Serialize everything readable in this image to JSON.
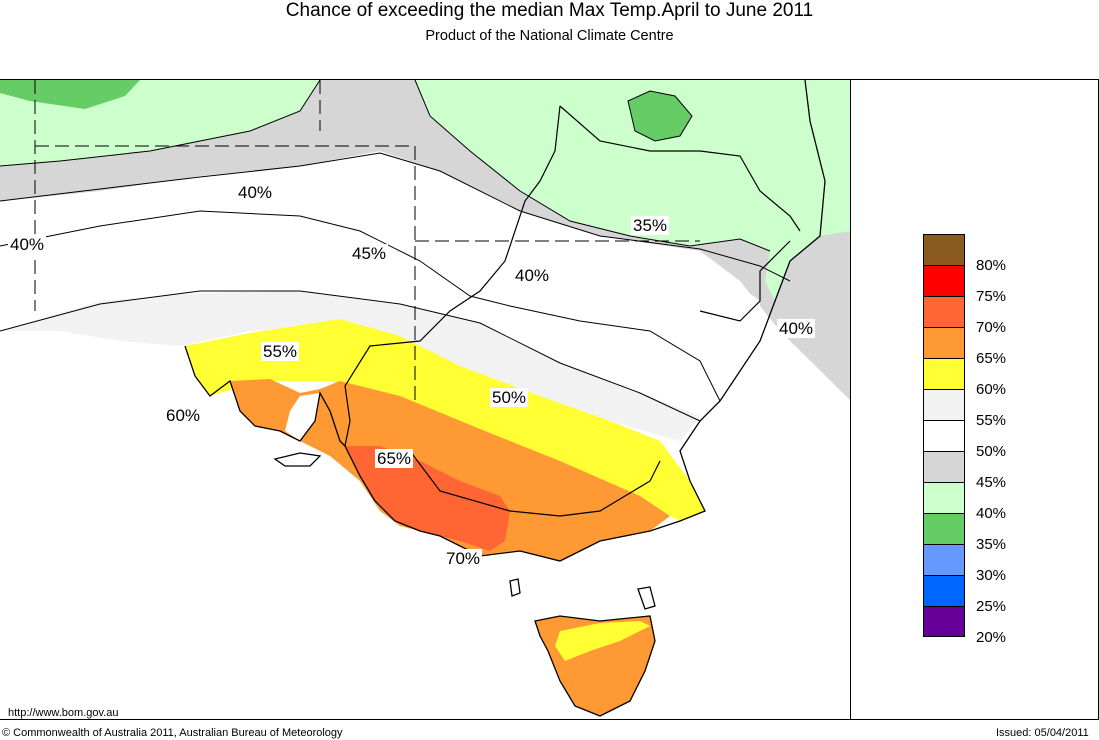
{
  "header": {
    "title": "Chance of exceeding the median Max Temp.April to June 2011",
    "subtitle": "Product of the National Climate Centre"
  },
  "map": {
    "labels": [
      "40%",
      "40%",
      "45%",
      "40%",
      "35%",
      "40%",
      "55%",
      "50%",
      "60%",
      "65%",
      "70%"
    ]
  },
  "legend": {
    "items": [
      {
        "label": "80%",
        "color": "#8b5a1e"
      },
      {
        "label": "75%",
        "color": "#ff0000"
      },
      {
        "label": "70%",
        "color": "#ff6633"
      },
      {
        "label": "65%",
        "color": "#ff9933"
      },
      {
        "label": "60%",
        "color": "#ffff33"
      },
      {
        "label": "55%",
        "color": "#f2f2f2"
      },
      {
        "label": "50%",
        "color": "#ffffff"
      },
      {
        "label": "45%",
        "color": "#d6d6d6"
      },
      {
        "label": "40%",
        "color": "#ccffcc"
      },
      {
        "label": "35%",
        "color": "#66cc66"
      },
      {
        "label": "30%",
        "color": "#6699ff"
      },
      {
        "label": "25%",
        "color": "#0066ff"
      },
      {
        "label": "20%",
        "color": "#660099"
      }
    ]
  },
  "footer": {
    "url": "http://www.bom.gov.au",
    "copyright": "© Commonwealth of Australia 2011, Australian Bureau of Meteorology",
    "issued": "Issued: 05/04/2011"
  }
}
